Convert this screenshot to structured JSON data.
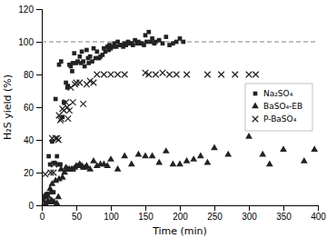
{
  "chart_data": {
    "type": "scatter",
    "xlabel": "Time (min)",
    "ylabel": "H₂S yield (%)",
    "xlim": [
      0,
      400
    ],
    "ylim": [
      0,
      120
    ],
    "xticks": [
      0,
      50,
      100,
      150,
      200,
      250,
      300,
      350,
      400
    ],
    "yticks": [
      0,
      20,
      40,
      60,
      80,
      100,
      120
    ],
    "grid": false,
    "legend": "center right",
    "reference_lines": [
      {
        "value": 100,
        "line_style": "dashed"
      }
    ],
    "series": [
      {
        "name": "Na₂SO₄",
        "marker": "square",
        "color": "#222222",
        "x": [
          2,
          4,
          5,
          7,
          8,
          10,
          12,
          14,
          15,
          17,
          18,
          20,
          22,
          24,
          25,
          27,
          28,
          30,
          32,
          35,
          37,
          38,
          40,
          42,
          44,
          45,
          47,
          50,
          52,
          55,
          57,
          58,
          60,
          62,
          65,
          67,
          68,
          70,
          73,
          75,
          78,
          80,
          83,
          85,
          88,
          90,
          92,
          95,
          97,
          98,
          100,
          103,
          105,
          108,
          110,
          113,
          115,
          118,
          120,
          122,
          125,
          128,
          130,
          132,
          135,
          138,
          140,
          143,
          145,
          148,
          150,
          152,
          155,
          158,
          160,
          163,
          165,
          170,
          175,
          180,
          185,
          190,
          195,
          200,
          205
        ],
        "values": [
          3,
          5,
          6,
          5,
          7,
          30,
          25,
          8,
          39,
          8,
          26,
          65,
          30,
          25,
          86,
          25,
          88,
          54,
          63,
          75,
          72,
          73,
          86,
          85,
          82,
          87,
          93,
          87,
          88,
          91,
          87,
          94,
          88,
          85,
          95,
          90,
          87,
          91,
          88,
          96,
          90,
          94,
          90,
          91,
          92,
          96,
          94,
          97,
          95,
          98,
          96,
          97,
          99,
          97,
          100,
          98,
          98,
          97,
          99,
          98,
          100,
          99,
          99,
          98,
          101,
          99,
          100,
          99,
          99,
          98,
          104,
          100,
          106,
          100,
          102,
          99,
          100,
          101,
          99,
          103,
          98,
          99,
          100,
          102,
          100
        ]
      },
      {
        "name": "BaSO₄-EB",
        "marker": "triangle",
        "color": "#222222",
        "x": [
          5,
          8,
          10,
          12,
          14,
          15,
          17,
          18,
          20,
          22,
          24,
          25,
          28,
          30,
          33,
          35,
          38,
          40,
          43,
          45,
          48,
          50,
          53,
          55,
          58,
          60,
          63,
          65,
          70,
          75,
          80,
          85,
          90,
          95,
          100,
          110,
          120,
          130,
          140,
          150,
          160,
          170,
          180,
          190,
          200,
          210,
          220,
          230,
          240,
          250,
          270,
          300,
          320,
          330,
          350,
          380,
          395
        ],
        "values": [
          1,
          2,
          2,
          10,
          3,
          13,
          2,
          2,
          15,
          1,
          5,
          16,
          22,
          17,
          20,
          23,
          22,
          22,
          22,
          22,
          23,
          24,
          24,
          25,
          24,
          23,
          23,
          24,
          22,
          27,
          24,
          25,
          25,
          24,
          28,
          22,
          30,
          25,
          31,
          30,
          30,
          26,
          33,
          25,
          25,
          27,
          28,
          30,
          26,
          35,
          31,
          42,
          31,
          25,
          34,
          27,
          34
        ]
      },
      {
        "name": "P-BaSO₄",
        "marker": "x",
        "color": "#222222",
        "x": [
          5,
          8,
          10,
          13,
          15,
          17,
          18,
          20,
          22,
          24,
          25,
          27,
          28,
          30,
          32,
          35,
          37,
          38,
          40,
          42,
          45,
          48,
          50,
          55,
          60,
          65,
          70,
          75,
          80,
          90,
          100,
          110,
          120,
          150,
          155,
          165,
          175,
          185,
          195,
          210,
          240,
          260,
          280,
          300,
          310
        ],
        "values": [
          19,
          6,
          6,
          20,
          41,
          20,
          25,
          41,
          41,
          40,
          55,
          52,
          53,
          59,
          58,
          63,
          60,
          53,
          58,
          72,
          63,
          74,
          75,
          75,
          62,
          74,
          76,
          75,
          80,
          80,
          80,
          80,
          80,
          81,
          80,
          80,
          81,
          80,
          80,
          80,
          80,
          80,
          80,
          80,
          80
        ]
      }
    ]
  }
}
